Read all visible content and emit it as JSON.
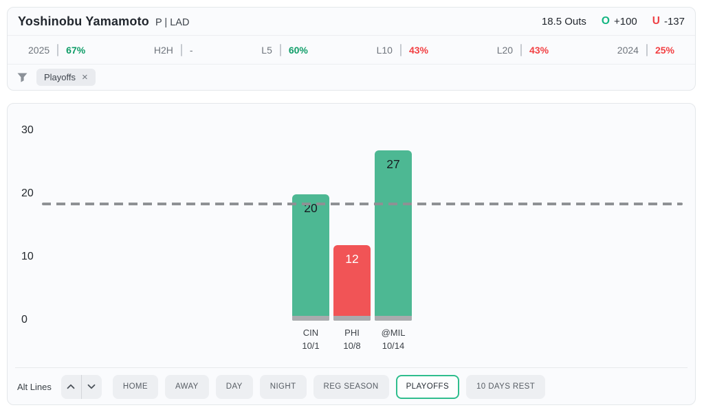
{
  "header": {
    "player_name": "Yoshinobu Yamamoto",
    "player_meta": "P | LAD",
    "prop_line": "18.5 Outs",
    "over": {
      "label": "O",
      "odds": "+100"
    },
    "under": {
      "label": "U",
      "odds": "-137"
    }
  },
  "splits": [
    {
      "label": "2025",
      "value": "67%",
      "trend": "positive"
    },
    {
      "label": "H2H",
      "value": "-",
      "trend": "neutral"
    },
    {
      "label": "L5",
      "value": "60%",
      "trend": "positive"
    },
    {
      "label": "L10",
      "value": "43%",
      "trend": "negative"
    },
    {
      "label": "L20",
      "value": "43%",
      "trend": "negative"
    },
    {
      "label": "2024",
      "value": "25%",
      "trend": "negative"
    }
  ],
  "filter_bar": {
    "chips": [
      {
        "label": "Playoffs",
        "removable": true
      }
    ]
  },
  "chart_data": {
    "type": "bar",
    "categories": [
      "CIN 10/1",
      "PHI 10/8",
      "@MIL 10/14"
    ],
    "category_lines": [
      [
        "CIN",
        "10/1"
      ],
      [
        "PHI",
        "10/8"
      ],
      [
        "@MIL",
        "10/14"
      ]
    ],
    "values": [
      20,
      12,
      27
    ],
    "prop_line_value": 18.5,
    "ylim": [
      0,
      30
    ],
    "yticks": [
      0,
      10,
      20,
      30
    ],
    "grid": false,
    "legend": "none",
    "bar_over_color": "#4db893",
    "bar_under_color": "#f15456",
    "bar_base_color": "#a9abae",
    "line_color": "#8e9194",
    "value_label_over_color": "#171c21",
    "value_label_under_color": "#ffffff"
  },
  "controls": {
    "alt_lines_label": "Alt Lines",
    "filter_buttons": [
      {
        "label": "HOME",
        "active": false
      },
      {
        "label": "AWAY",
        "active": false
      },
      {
        "label": "DAY",
        "active": false
      },
      {
        "label": "NIGHT",
        "active": false
      },
      {
        "label": "REG SEASON",
        "active": false
      },
      {
        "label": "PLAYOFFS",
        "active": true
      },
      {
        "label": "10 DAYS REST",
        "active": false
      }
    ]
  },
  "icons": {
    "close": "×"
  },
  "colors": {
    "positive": "#0f9d68",
    "negative": "#f23f42",
    "over_accent": "#12b581",
    "under_accent": "#ee4146",
    "card_bg": "#fafbfd",
    "card_border": "#e4e7ea"
  }
}
